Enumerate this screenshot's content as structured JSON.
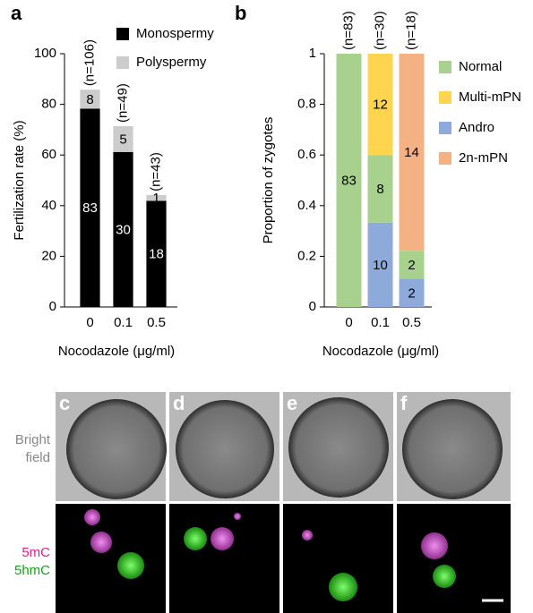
{
  "chart_data": [
    {
      "type": "stacked-bar",
      "panel": "a",
      "categories": [
        "0",
        "0.1",
        "0.5"
      ],
      "series": [
        {
          "name": "Monospermy",
          "color": "#000000",
          "values": [
            78.3,
            61.2,
            41.9
          ],
          "value_labels": [
            "83",
            "30",
            "18"
          ]
        },
        {
          "name": "Polyspermy",
          "color": "#cccccc",
          "values": [
            7.5,
            10.2,
            2.3
          ],
          "value_labels": [
            "8",
            "5",
            "1"
          ]
        }
      ],
      "annotations": [
        "(n=106)",
        "(n=49)",
        "(n=43)"
      ],
      "x_label": "Nocodazole (μg/ml)",
      "y_label": "Fertilization rate (%)",
      "ylim": [
        0,
        100
      ],
      "yticks": [
        0,
        20,
        40,
        60,
        80,
        100
      ],
      "grid": false
    },
    {
      "type": "stacked-bar",
      "panel": "b",
      "categories": [
        "0",
        "0.1",
        "0.5"
      ],
      "series": [
        {
          "name": "Andro",
          "color": "#8eaadb",
          "values": [
            0,
            0.333,
            0.111
          ],
          "value_labels": [
            null,
            "10",
            "2"
          ]
        },
        {
          "name": "Normal",
          "color": "#a9d18e",
          "values": [
            1,
            0.267,
            0.111
          ],
          "value_labels": [
            "83",
            "8",
            "2"
          ]
        },
        {
          "name": "Multi-mPN",
          "color": "#ffd44f",
          "values": [
            0,
            0.4,
            0
          ],
          "value_labels": [
            null,
            "12",
            null
          ]
        },
        {
          "name": "2n-mPN",
          "color": "#f4b183",
          "values": [
            0,
            0,
            0.778
          ],
          "value_labels": [
            null,
            null,
            "14"
          ]
        }
      ],
      "annotations": [
        "(n=83)",
        "(n=30)",
        "(n=18)"
      ],
      "x_label": "Nocodazole (μg/ml)",
      "y_label": "Proportion of zygotes",
      "ylim": [
        0,
        1
      ],
      "yticks": [
        0,
        0.2,
        0.4,
        0.6,
        0.8,
        1
      ],
      "grid": false
    }
  ],
  "images": {
    "panels": [
      "c",
      "d",
      "e",
      "f"
    ],
    "row_labels": [
      "Bright",
      "field"
    ],
    "stain_labels": [
      "5mC",
      "5hmC"
    ]
  }
}
